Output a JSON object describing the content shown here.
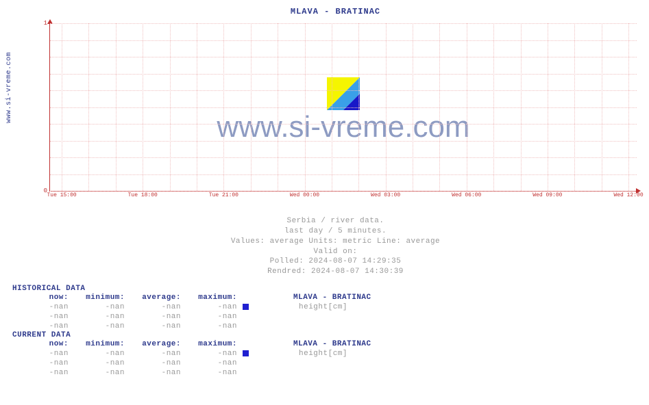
{
  "site_label": "www.si-vreme.com",
  "chart": {
    "title": "MLAVA -  BRATINAC",
    "type": "line",
    "ylim": [
      0,
      1
    ],
    "y_ticks": [
      0,
      1
    ],
    "x_tick_labels": [
      "Tue 15:00",
      "Tue 18:00",
      "Tue 21:00",
      "Wed 00:00",
      "Wed 03:00",
      "Wed 06:00",
      "Wed 09:00",
      "Wed 12:00"
    ],
    "x_tick_positions_pct": [
      2,
      15.8,
      29.6,
      43.4,
      57.2,
      71.0,
      84.8,
      98.6
    ],
    "minor_x_per_major": 3,
    "grid_h_positions_pct": [
      0,
      10,
      20,
      30,
      40,
      50,
      60,
      70,
      80,
      90,
      100
    ],
    "background_color": "#ffffff",
    "grid_color": "#f0c0c0",
    "axis_color": "#c03030",
    "tick_fontsize": 9,
    "title_fontsize": 12,
    "title_color": "#2e3a8c",
    "watermark_text": "www.si-vreme.com",
    "watermark_color": "#7a8ab8"
  },
  "meta": {
    "line1": "Serbia / river data.",
    "line2": "last day / 5 minutes.",
    "line3": "Values: average  Units: metric  Line: average",
    "line4": "Valid on:",
    "line5": "Polled: 2024-08-07 14:29:35",
    "line6": "Rendred: 2024-08-07 14:30:39"
  },
  "historical": {
    "header": "HISTORICAL DATA",
    "columns": [
      "now:",
      "minimum:",
      "average:",
      "maximum:"
    ],
    "station_label": "MLAVA -  BRATINAC",
    "measurement": "height[cm]",
    "swatch_color": "#2020d0",
    "rows": [
      [
        "-nan",
        "-nan",
        "-nan",
        "-nan"
      ],
      [
        "-nan",
        "-nan",
        "-nan",
        "-nan"
      ],
      [
        "-nan",
        "-nan",
        "-nan",
        "-nan"
      ]
    ]
  },
  "current": {
    "header": "CURRENT DATA",
    "columns": [
      "now:",
      "minimum:",
      "average:",
      "maximum:"
    ],
    "station_label": "MLAVA -  BRATINAC",
    "measurement": "height[cm]",
    "swatch_color": "#2020d0",
    "rows": [
      [
        "-nan",
        "-nan",
        "-nan",
        "-nan"
      ],
      [
        "-nan",
        "-nan",
        "-nan",
        "-nan"
      ],
      [
        "-nan",
        "-nan",
        "-nan",
        "-nan"
      ]
    ]
  }
}
